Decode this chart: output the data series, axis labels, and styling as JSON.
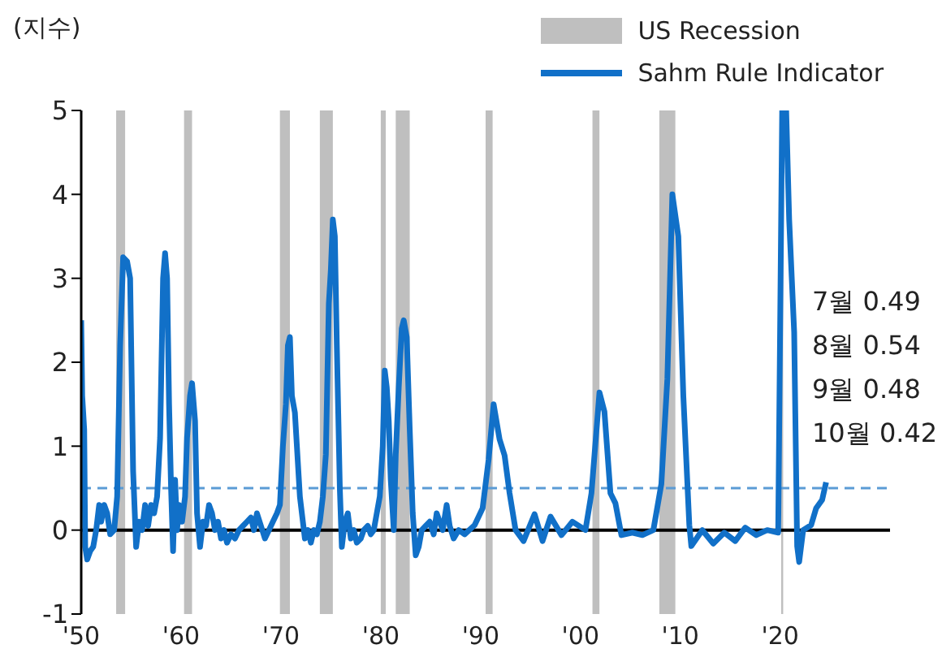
{
  "chart_data": {
    "type": "line",
    "ylabel": "(지수)",
    "x": [
      1950.0,
      1950.1,
      1950.3,
      1950.4,
      1950.6,
      1950.9,
      1951.2,
      1951.5,
      1951.8,
      1952.0,
      1952.3,
      1952.6,
      1952.9,
      1953.3,
      1953.6,
      1953.9,
      1954.2,
      1954.6,
      1954.9,
      1955.2,
      1955.5,
      1955.8,
      1956.1,
      1956.4,
      1956.7,
      1957.0,
      1957.3,
      1957.6,
      1957.9,
      1958.2,
      1958.4,
      1958.6,
      1958.8,
      1959.0,
      1959.2,
      1959.4,
      1959.6,
      1959.8,
      1960.1,
      1960.4,
      1960.6,
      1960.9,
      1961.1,
      1961.4,
      1961.6,
      1961.9,
      1962.2,
      1962.5,
      1962.8,
      1963.1,
      1963.4,
      1963.7,
      1964.0,
      1964.3,
      1964.6,
      1965.0,
      1965.4,
      1965.8,
      1966.2,
      1966.6,
      1967.0,
      1967.3,
      1967.6,
      1968.0,
      1968.4,
      1968.8,
      1969.2,
      1969.6,
      1969.9,
      1970.2,
      1970.5,
      1970.7,
      1970.9,
      1971.1,
      1971.4,
      1971.6,
      1971.9,
      1972.2,
      1972.4,
      1972.7,
      1973.0,
      1973.3,
      1973.6,
      1973.9,
      1974.2,
      1974.5,
      1974.8,
      1975.0,
      1975.2,
      1975.4,
      1975.6,
      1975.9,
      1976.1,
      1976.4,
      1976.7,
      1977.0,
      1977.3,
      1977.6,
      1978.0,
      1978.3,
      1978.7,
      1979.0,
      1979.3,
      1979.6,
      1979.9,
      1980.2,
      1980.4,
      1980.6,
      1980.8,
      1981.0,
      1981.3,
      1981.5,
      1981.8,
      1982.1,
      1982.3,
      1982.6,
      1982.9,
      1983.2,
      1983.5,
      1983.8,
      1984.1,
      1984.5,
      1984.9,
      1985.3,
      1985.6,
      1985.9,
      1986.2,
      1986.6,
      1986.9,
      1987.3,
      1987.8,
      1988.4,
      1989.4,
      1990.2,
      1990.8,
      1991.3,
      1991.9,
      1992.4,
      1992.9,
      1993.5,
      1994.3,
      1995.4,
      1996.2,
      1997.0,
      1998.1,
      1999.2,
      2000.5,
      2001.1,
      2001.9,
      2002.4,
      2003.0,
      2003.5,
      2004.1,
      2005.2,
      2006.2,
      2007.3,
      2008.1,
      2008.7,
      2009.2,
      2009.8,
      2010.3,
      2010.9,
      2011.1,
      2012.2,
      2013.3,
      2014.4,
      2015.5,
      2016.5,
      2017.6,
      2018.7,
      2019.8,
      2020.2,
      2020.6,
      2020.9,
      2021.4,
      2021.7,
      2021.9,
      2022.3,
      2023.1,
      2023.6,
      2024.2,
      2024.6
    ],
    "series": [
      {
        "name": "Sahm Rule Indicator",
        "color": "#1170c8",
        "values": [
          2.5,
          1.6,
          1.2,
          -0.2,
          -0.35,
          -0.25,
          -0.2,
          0.0,
          0.3,
          0.1,
          0.3,
          0.2,
          -0.05,
          0.0,
          0.4,
          2.2,
          3.25,
          3.2,
          3.0,
          0.7,
          -0.2,
          0.1,
          0.0,
          0.3,
          0.05,
          0.3,
          0.2,
          0.4,
          1.1,
          3.0,
          3.3,
          3.0,
          1.5,
          0.5,
          -0.25,
          0.6,
          0.0,
          0.3,
          0.1,
          0.4,
          1.1,
          1.6,
          1.75,
          1.3,
          0.2,
          -0.2,
          0.1,
          0.05,
          0.3,
          0.2,
          0.0,
          0.1,
          -0.1,
          0.0,
          -0.15,
          -0.05,
          -0.1,
          0.0,
          0.05,
          0.1,
          0.15,
          0.0,
          0.2,
          0.05,
          -0.1,
          0.0,
          0.1,
          0.2,
          0.3,
          1.0,
          1.5,
          2.2,
          2.3,
          1.6,
          1.4,
          1.0,
          0.4,
          0.1,
          -0.1,
          0.0,
          -0.15,
          0.0,
          -0.05,
          0.1,
          0.4,
          0.9,
          2.7,
          3.1,
          3.7,
          3.5,
          2.2,
          0.5,
          -0.2,
          0.1,
          0.2,
          -0.1,
          0.0,
          -0.15,
          -0.1,
          0.0,
          0.05,
          -0.05,
          0.0,
          0.2,
          0.4,
          1.0,
          1.9,
          1.7,
          1.3,
          0.6,
          0.0,
          0.9,
          1.7,
          2.4,
          2.5,
          2.3,
          1.2,
          0.2,
          -0.3,
          -0.2,
          0.0,
          0.05,
          0.1,
          -0.05,
          0.2,
          0.1,
          0.0,
          0.3,
          0.05,
          -0.1,
          0.0,
          -0.05,
          0.06,
          0.26,
          0.84,
          1.5,
          1.08,
          0.89,
          0.44,
          0.0,
          -0.13,
          0.19,
          -0.13,
          0.16,
          -0.06,
          0.1,
          0.0,
          0.44,
          1.64,
          1.41,
          0.44,
          0.32,
          -0.06,
          -0.03,
          -0.06,
          0.0,
          0.55,
          1.8,
          4.0,
          3.5,
          1.6,
          0.06,
          -0.19,
          0.0,
          -0.16,
          -0.03,
          -0.13,
          0.03,
          -0.06,
          0.0,
          -0.03,
          5.0,
          5.0,
          3.7,
          2.36,
          -0.19,
          -0.38,
          0.0,
          0.06,
          0.26,
          0.36,
          0.57
        ]
      }
    ],
    "xlim": [
      1950,
      2031
    ],
    "xticks": [
      {
        "value": 1950,
        "label": "'50"
      },
      {
        "value": 1960,
        "label": "'60"
      },
      {
        "value": 1970,
        "label": "'70"
      },
      {
        "value": 1980,
        "label": "'80"
      },
      {
        "value": 1990,
        "label": "'90"
      },
      {
        "value": 2000,
        "label": "'00"
      },
      {
        "value": 2010,
        "label": "'10"
      },
      {
        "value": 2020,
        "label": "'20"
      }
    ],
    "ylim": [
      -1,
      5
    ],
    "yticks": [
      -1,
      0,
      1,
      2,
      3,
      4,
      5
    ],
    "bands": [
      {
        "axis": "x",
        "from": 1953.5,
        "to": 1954.4,
        "label": "US Recession",
        "color": "#bfbfbf"
      },
      {
        "axis": "x",
        "from": 1960.3,
        "to": 1961.1,
        "color": "#bfbfbf"
      },
      {
        "axis": "x",
        "from": 1969.9,
        "to": 1970.9,
        "color": "#bfbfbf"
      },
      {
        "axis": "x",
        "from": 1973.9,
        "to": 1975.2,
        "color": "#bfbfbf"
      },
      {
        "axis": "x",
        "from": 1980.0,
        "to": 1980.5,
        "color": "#bfbfbf"
      },
      {
        "axis": "x",
        "from": 1981.5,
        "to": 1982.9,
        "color": "#bfbfbf"
      },
      {
        "axis": "x",
        "from": 1990.5,
        "to": 1991.2,
        "color": "#bfbfbf"
      },
      {
        "axis": "x",
        "from": 2001.2,
        "to": 2001.9,
        "color": "#bfbfbf"
      },
      {
        "axis": "x",
        "from": 2007.9,
        "to": 2009.5,
        "color": "#bfbfbf"
      },
      {
        "axis": "x",
        "from": 2020.1,
        "to": 2020.3,
        "color": "#bfbfbf"
      }
    ],
    "ref_lines": [
      {
        "axis": "y",
        "value": 0,
        "color": "#000000",
        "line_style": "solid"
      },
      {
        "axis": "y",
        "value": 0.5,
        "color": "#5b9bd5",
        "line_style": "dashed"
      }
    ],
    "annotations": [
      "7월 0.49",
      "8월 0.54",
      "9월 0.48",
      "10월 0.42"
    ],
    "legend": "top right",
    "marker": "none",
    "line_style": "solid"
  }
}
